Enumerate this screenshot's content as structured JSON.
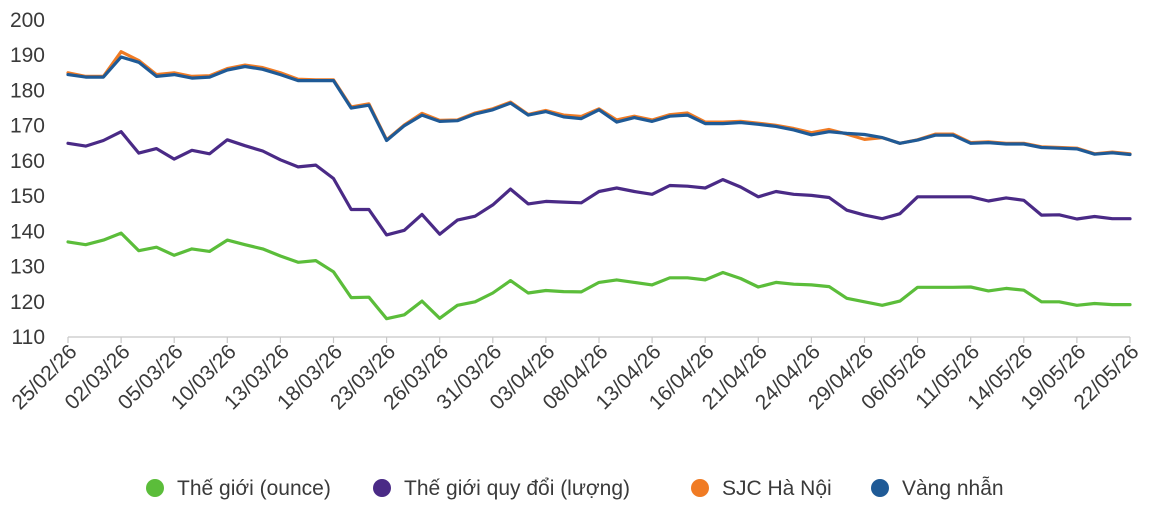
{
  "chart_data": {
    "type": "line",
    "title": "",
    "xlabel": "",
    "ylabel": "",
    "ylim": [
      110,
      200
    ],
    "yticks": [
      "200",
      "190",
      "180",
      "170",
      "160",
      "150",
      "140",
      "130",
      "120",
      "110"
    ],
    "grid": false,
    "legend_position": "bottom",
    "x_tick_labels": [
      "25/02/26",
      "02/03/26",
      "05/03/26",
      "10/03/26",
      "13/03/26",
      "18/03/26",
      "23/03/26",
      "26/03/26",
      "31/03/26",
      "03/04/26",
      "08/04/26",
      "13/04/26",
      "16/04/26",
      "21/04/26",
      "24/04/26",
      "29/04/26",
      "06/05/26",
      "11/05/26",
      "14/05/26",
      "19/05/26",
      "22/05/26"
    ],
    "series": [
      {
        "name": "Thế giới (ounce)",
        "color": "#5bbd3a",
        "values": [
          137.0,
          136.2,
          137.5,
          139.5,
          134.5,
          135.5,
          133.2,
          135.0,
          134.3,
          137.5,
          136.2,
          135.0,
          133.0,
          131.2,
          131.7,
          128.5,
          121.2,
          121.3,
          115.2,
          116.3,
          120.2,
          115.3,
          119.0,
          120.0,
          122.5,
          126.0,
          122.5,
          123.2,
          122.9,
          122.8,
          125.5,
          126.2,
          125.5,
          124.8,
          126.8,
          126.8,
          126.2,
          128.3,
          126.6,
          124.2,
          125.5,
          125.0,
          124.8,
          124.3,
          121.0,
          120.0,
          119.0,
          120.2,
          124.1,
          124.1,
          124.1,
          124.2,
          123.1,
          123.8,
          123.3,
          120.0,
          120.0,
          119.0,
          119.5,
          119.2,
          119.2
        ]
      },
      {
        "name": "Thế giới quy đổi (lượng)",
        "color": "#4a2a86",
        "values": [
          165.0,
          164.2,
          165.8,
          168.3,
          162.2,
          163.5,
          160.5,
          163.0,
          162.0,
          166.0,
          164.3,
          162.8,
          160.3,
          158.3,
          158.8,
          155.0,
          146.2,
          146.2,
          139.0,
          140.3,
          144.8,
          139.2,
          143.2,
          144.3,
          147.5,
          152.0,
          147.8,
          148.5,
          148.3,
          148.1,
          151.3,
          152.3,
          151.3,
          150.5,
          153.0,
          152.8,
          152.3,
          154.7,
          152.6,
          149.8,
          151.3,
          150.5,
          150.2,
          149.6,
          146.0,
          144.6,
          143.6,
          145.0,
          149.8,
          149.8,
          149.8,
          149.8,
          148.6,
          149.5,
          148.8,
          144.6,
          144.7,
          143.5,
          144.2,
          143.6,
          143.6
        ]
      },
      {
        "name": "SJC Hà Nội",
        "color": "#f07b24",
        "values": [
          185.0,
          184.0,
          184.0,
          191.0,
          188.5,
          184.5,
          185.0,
          184.0,
          184.2,
          186.2,
          187.2,
          186.5,
          185.0,
          183.2,
          183.0,
          183.0,
          175.3,
          176.2,
          166.0,
          170.2,
          173.5,
          171.5,
          171.6,
          173.6,
          174.8,
          176.7,
          173.2,
          174.3,
          173.0,
          172.6,
          174.8,
          171.6,
          172.7,
          171.6,
          173.1,
          173.6,
          171.0,
          171.0,
          171.2,
          170.7,
          170.1,
          169.2,
          168.0,
          168.9,
          167.6,
          166.1,
          166.6,
          165.0,
          166.0,
          167.6,
          167.6,
          165.2,
          165.4,
          165.0,
          165.0,
          164.0,
          163.8,
          163.6,
          162.0,
          162.5,
          162.0
        ]
      },
      {
        "name": "Vàng nhẫn",
        "color": "#1f5a96",
        "values": [
          184.5,
          183.8,
          183.8,
          189.5,
          188.0,
          184.0,
          184.5,
          183.5,
          183.8,
          185.8,
          186.8,
          186.0,
          184.5,
          182.8,
          182.8,
          182.8,
          175.0,
          175.8,
          165.8,
          170.0,
          173.0,
          171.2,
          171.4,
          173.3,
          174.5,
          176.4,
          173.0,
          174.0,
          172.5,
          172.0,
          174.5,
          171.0,
          172.3,
          171.2,
          172.7,
          173.0,
          170.6,
          170.6,
          170.9,
          170.4,
          169.8,
          168.8,
          167.4,
          168.3,
          167.8,
          167.5,
          166.6,
          165.0,
          165.9,
          167.3,
          167.3,
          165.0,
          165.2,
          164.8,
          164.8,
          163.8,
          163.6,
          163.4,
          161.9,
          162.3,
          161.8
        ]
      }
    ]
  }
}
